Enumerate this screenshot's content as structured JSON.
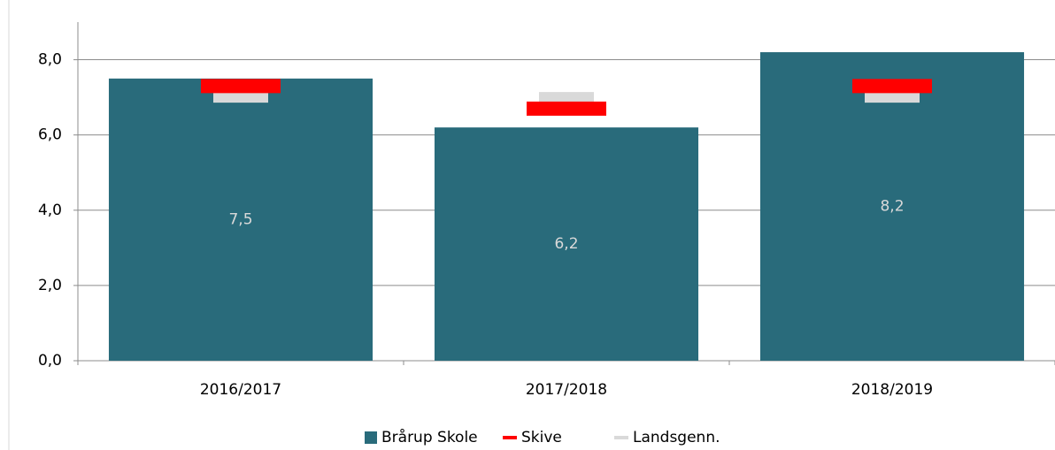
{
  "chart_data": {
    "type": "bar",
    "categories": [
      "2016/2017",
      "2017/2018",
      "2018/2019"
    ],
    "series": [
      {
        "name": "Brårup Skole",
        "color": "#296b7b",
        "values": [
          7.5,
          6.2,
          8.2
        ],
        "value_labels": [
          "7,5",
          "6,2",
          "8,2"
        ]
      },
      {
        "name": "Skive",
        "color": "#ff0000",
        "values": [
          7.3,
          6.7,
          7.3
        ]
      },
      {
        "name": "Landsgenn.",
        "color": "#d9d9d9",
        "values": [
          7.0,
          7.0,
          7.0
        ]
      }
    ],
    "ylim": [
      0,
      9
    ],
    "yticks": [
      {
        "value": 0,
        "label": "0,0"
      },
      {
        "value": 2,
        "label": "2,0"
      },
      {
        "value": 4,
        "label": "4,0"
      },
      {
        "value": 6,
        "label": "6,0"
      },
      {
        "value": 8,
        "label": "8,0"
      }
    ],
    "grid": true
  }
}
